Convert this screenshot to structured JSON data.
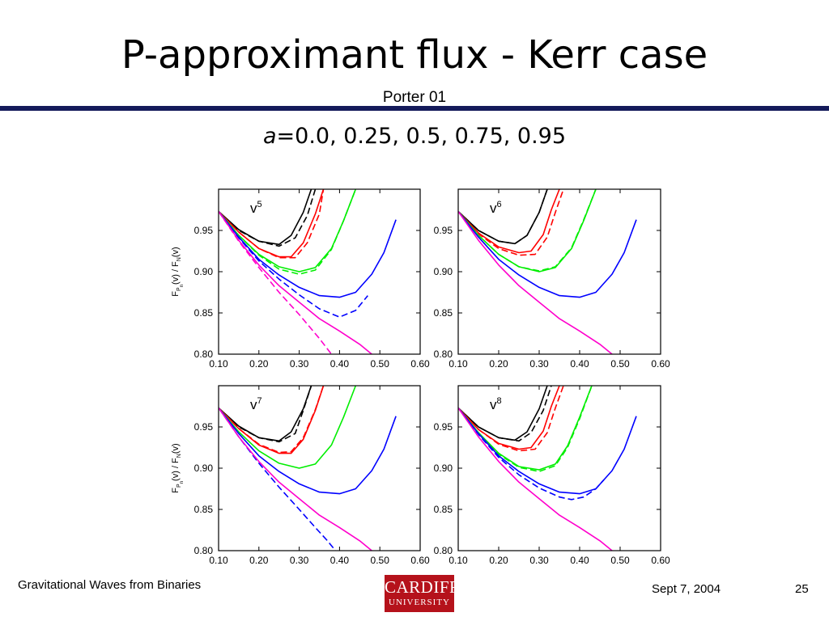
{
  "slide": {
    "title": "P-approximant flux - Kerr case",
    "subtitle": "Porter 01",
    "params_symbol": "a",
    "params_values": "=0.0, 0.25, 0.5, 0.75, 0.95",
    "footer_left": "Gravitational Waves from Binaries",
    "footer_date": "Sept 7, 2004",
    "page_number": "25",
    "logo_top": "CARDIFF",
    "logo_bottom": "UNIVERSITY"
  },
  "colors": {
    "rule": "#141a5a",
    "logo": "#b5121b",
    "a0.0": "#ff00cc",
    "a0.25": "#0000ff",
    "a0.5": "#00ee00",
    "a0.75": "#ff0000",
    "a0.95": "#000000"
  },
  "chart_data": [
    {
      "type": "line",
      "panel_label": "v5",
      "ylabel": "FPn(v) / FN(v)",
      "xlim": [
        0.1,
        0.6
      ],
      "ylim": [
        0.8,
        1.0
      ],
      "xticks": [
        "0.10",
        "0.20",
        "0.30",
        "0.40",
        "0.50",
        "0.60"
      ],
      "yticks": [
        "0.80",
        "0.85",
        "0.90",
        "0.95"
      ],
      "series": [
        {
          "a": "0.95",
          "style": "solid",
          "x": [
            0.1,
            0.15,
            0.2,
            0.25,
            0.28,
            0.31,
            0.33
          ],
          "y": [
            0.973,
            0.951,
            0.937,
            0.933,
            0.944,
            0.972,
            1.0
          ]
        },
        {
          "a": "0.95",
          "style": "dashed",
          "x": [
            0.1,
            0.15,
            0.2,
            0.25,
            0.29,
            0.32,
            0.34
          ],
          "y": [
            0.973,
            0.95,
            0.937,
            0.931,
            0.941,
            0.968,
            1.0
          ]
        },
        {
          "a": "0.75",
          "style": "solid",
          "x": [
            0.1,
            0.15,
            0.2,
            0.25,
            0.28,
            0.31,
            0.34,
            0.36
          ],
          "y": [
            0.973,
            0.948,
            0.928,
            0.918,
            0.918,
            0.935,
            0.97,
            1.0
          ]
        },
        {
          "a": "0.75",
          "style": "dashed",
          "x": [
            0.1,
            0.15,
            0.2,
            0.25,
            0.29,
            0.32,
            0.35,
            0.36
          ],
          "y": [
            0.973,
            0.948,
            0.928,
            0.917,
            0.917,
            0.935,
            0.97,
            1.0
          ]
        },
        {
          "a": "0.5",
          "style": "solid",
          "x": [
            0.1,
            0.15,
            0.2,
            0.25,
            0.3,
            0.34,
            0.38,
            0.41,
            0.44
          ],
          "y": [
            0.973,
            0.944,
            0.921,
            0.906,
            0.9,
            0.905,
            0.928,
            0.962,
            1.0
          ]
        },
        {
          "a": "0.5",
          "style": "dashed",
          "x": [
            0.1,
            0.15,
            0.2,
            0.25,
            0.3,
            0.34,
            0.38,
            0.41,
            0.44
          ],
          "y": [
            0.973,
            0.944,
            0.92,
            0.903,
            0.897,
            0.902,
            0.927,
            0.962,
            1.0
          ]
        },
        {
          "a": "0.25",
          "style": "solid",
          "x": [
            0.1,
            0.15,
            0.2,
            0.25,
            0.3,
            0.35,
            0.4,
            0.44,
            0.48,
            0.51,
            0.54
          ],
          "y": [
            0.973,
            0.942,
            0.915,
            0.896,
            0.881,
            0.871,
            0.869,
            0.875,
            0.897,
            0.923,
            0.963
          ]
        },
        {
          "a": "0.25",
          "style": "dashed",
          "x": [
            0.1,
            0.15,
            0.2,
            0.25,
            0.3,
            0.35,
            0.4,
            0.44,
            0.47
          ],
          "y": [
            0.973,
            0.941,
            0.913,
            0.891,
            0.872,
            0.855,
            0.845,
            0.853,
            0.871
          ]
        },
        {
          "a": "0.0",
          "style": "solid",
          "x": [
            0.1,
            0.15,
            0.2,
            0.25,
            0.3,
            0.35,
            0.4,
            0.45,
            0.48
          ],
          "y": [
            0.973,
            0.938,
            0.908,
            0.883,
            0.863,
            0.843,
            0.828,
            0.812,
            0.8
          ]
        },
        {
          "a": "0.0",
          "style": "dashed",
          "x": [
            0.1,
            0.15,
            0.2,
            0.25,
            0.3,
            0.35,
            0.38
          ],
          "y": [
            0.973,
            0.937,
            0.905,
            0.875,
            0.848,
            0.819,
            0.8
          ]
        }
      ]
    },
    {
      "type": "line",
      "panel_label": "v6",
      "ylabel": "",
      "xlim": [
        0.1,
        0.6
      ],
      "ylim": [
        0.8,
        1.0
      ],
      "xticks": [
        "0.10",
        "0.20",
        "0.30",
        "0.40",
        "0.50",
        "0.60"
      ],
      "yticks": [
        "0.80",
        "0.85",
        "0.90",
        "0.95"
      ],
      "series": [
        {
          "a": "0.95",
          "style": "solid",
          "x": [
            0.1,
            0.15,
            0.2,
            0.24,
            0.27,
            0.3,
            0.32
          ],
          "y": [
            0.973,
            0.95,
            0.937,
            0.934,
            0.944,
            0.972,
            1.0
          ]
        },
        {
          "a": "0.95",
          "style": "dashed",
          "x": [
            0.1,
            0.15,
            0.2,
            0.24,
            0.27,
            0.3,
            0.32
          ],
          "y": [
            0.973,
            0.95,
            0.937,
            0.934,
            0.944,
            0.972,
            1.0
          ]
        },
        {
          "a": "0.75",
          "style": "solid",
          "x": [
            0.1,
            0.15,
            0.2,
            0.25,
            0.28,
            0.31,
            0.33,
            0.35
          ],
          "y": [
            0.973,
            0.947,
            0.93,
            0.923,
            0.925,
            0.945,
            0.975,
            1.0
          ]
        },
        {
          "a": "0.75",
          "style": "dashed",
          "x": [
            0.1,
            0.15,
            0.2,
            0.25,
            0.29,
            0.32,
            0.34,
            0.36
          ],
          "y": [
            0.973,
            0.946,
            0.928,
            0.92,
            0.921,
            0.942,
            0.972,
            1.0
          ]
        },
        {
          "a": "0.5",
          "style": "solid",
          "x": [
            0.1,
            0.15,
            0.2,
            0.25,
            0.3,
            0.34,
            0.38,
            0.41,
            0.44
          ],
          "y": [
            0.973,
            0.944,
            0.921,
            0.906,
            0.9,
            0.905,
            0.928,
            0.962,
            1.0
          ]
        },
        {
          "a": "0.5",
          "style": "dashed",
          "x": [
            0.1,
            0.15,
            0.2,
            0.25,
            0.3,
            0.34,
            0.38,
            0.41,
            0.44
          ],
          "y": [
            0.973,
            0.944,
            0.921,
            0.906,
            0.901,
            0.906,
            0.929,
            0.963,
            1.0
          ]
        },
        {
          "a": "0.25",
          "style": "solid",
          "x": [
            0.1,
            0.15,
            0.2,
            0.25,
            0.3,
            0.35,
            0.4,
            0.44,
            0.48,
            0.51,
            0.54
          ],
          "y": [
            0.973,
            0.942,
            0.915,
            0.896,
            0.881,
            0.871,
            0.869,
            0.875,
            0.897,
            0.923,
            0.963
          ]
        },
        {
          "a": "0.0",
          "style": "solid",
          "x": [
            0.1,
            0.15,
            0.2,
            0.25,
            0.3,
            0.35,
            0.4,
            0.45,
            0.48
          ],
          "y": [
            0.973,
            0.938,
            0.908,
            0.883,
            0.863,
            0.843,
            0.828,
            0.812,
            0.8
          ]
        }
      ]
    },
    {
      "type": "line",
      "panel_label": "v7",
      "ylabel": "FPn(v) / FN(v)",
      "xlim": [
        0.1,
        0.6
      ],
      "ylim": [
        0.8,
        1.0
      ],
      "xticks": [
        "0.10",
        "0.20",
        "0.30",
        "0.40",
        "0.50",
        "0.60"
      ],
      "yticks": [
        "0.80",
        "0.85",
        "0.90",
        "0.95"
      ],
      "series": [
        {
          "a": "0.95",
          "style": "solid",
          "x": [
            0.1,
            0.15,
            0.2,
            0.25,
            0.28,
            0.31,
            0.33
          ],
          "y": [
            0.973,
            0.951,
            0.937,
            0.933,
            0.944,
            0.972,
            1.0
          ]
        },
        {
          "a": "0.95",
          "style": "dashed",
          "x": [
            0.1,
            0.15,
            0.2,
            0.25,
            0.29,
            0.31,
            0.33
          ],
          "y": [
            0.973,
            0.95,
            0.937,
            0.932,
            0.942,
            0.97,
            1.0
          ]
        },
        {
          "a": "0.75",
          "style": "solid",
          "x": [
            0.1,
            0.15,
            0.2,
            0.25,
            0.28,
            0.31,
            0.34,
            0.36
          ],
          "y": [
            0.973,
            0.948,
            0.928,
            0.918,
            0.918,
            0.935,
            0.97,
            1.0
          ]
        },
        {
          "a": "0.75",
          "style": "dashed",
          "x": [
            0.1,
            0.15,
            0.2,
            0.25,
            0.28,
            0.31,
            0.34,
            0.36
          ],
          "y": [
            0.973,
            0.948,
            0.929,
            0.919,
            0.92,
            0.937,
            0.971,
            1.0
          ]
        },
        {
          "a": "0.5",
          "style": "solid",
          "x": [
            0.1,
            0.15,
            0.2,
            0.25,
            0.3,
            0.34,
            0.38,
            0.41,
            0.44
          ],
          "y": [
            0.973,
            0.944,
            0.921,
            0.906,
            0.9,
            0.905,
            0.928,
            0.962,
            1.0
          ]
        },
        {
          "a": "0.25",
          "style": "solid",
          "x": [
            0.1,
            0.15,
            0.2,
            0.25,
            0.3,
            0.35,
            0.4,
            0.44,
            0.48,
            0.51,
            0.54
          ],
          "y": [
            0.973,
            0.942,
            0.915,
            0.896,
            0.881,
            0.871,
            0.869,
            0.875,
            0.897,
            0.923,
            0.963
          ]
        },
        {
          "a": "0.25",
          "style": "dashed",
          "x": [
            0.1,
            0.15,
            0.2,
            0.25,
            0.3,
            0.34,
            0.37,
            0.39
          ],
          "y": [
            0.973,
            0.938,
            0.906,
            0.877,
            0.85,
            0.828,
            0.812,
            0.8
          ]
        },
        {
          "a": "0.0",
          "style": "solid",
          "x": [
            0.1,
            0.15,
            0.2,
            0.25,
            0.3,
            0.35,
            0.4,
            0.45,
            0.48
          ],
          "y": [
            0.973,
            0.938,
            0.908,
            0.883,
            0.863,
            0.843,
            0.828,
            0.812,
            0.8
          ]
        }
      ]
    },
    {
      "type": "line",
      "panel_label": "v8",
      "ylabel": "",
      "xlim": [
        0.1,
        0.6
      ],
      "ylim": [
        0.8,
        1.0
      ],
      "xticks": [
        "0.10",
        "0.20",
        "0.30",
        "0.40",
        "0.50",
        "0.60"
      ],
      "yticks": [
        "0.80",
        "0.85",
        "0.90",
        "0.95"
      ],
      "series": [
        {
          "a": "0.95",
          "style": "solid",
          "x": [
            0.1,
            0.15,
            0.2,
            0.24,
            0.27,
            0.3,
            0.32
          ],
          "y": [
            0.973,
            0.95,
            0.937,
            0.934,
            0.944,
            0.972,
            1.0
          ]
        },
        {
          "a": "0.95",
          "style": "dashed",
          "x": [
            0.1,
            0.15,
            0.2,
            0.25,
            0.28,
            0.31,
            0.33
          ],
          "y": [
            0.973,
            0.95,
            0.937,
            0.933,
            0.943,
            0.97,
            1.0
          ]
        },
        {
          "a": "0.75",
          "style": "solid",
          "x": [
            0.1,
            0.15,
            0.2,
            0.25,
            0.28,
            0.31,
            0.33,
            0.35
          ],
          "y": [
            0.973,
            0.947,
            0.93,
            0.923,
            0.925,
            0.945,
            0.975,
            1.0
          ]
        },
        {
          "a": "0.75",
          "style": "dashed",
          "x": [
            0.1,
            0.15,
            0.2,
            0.25,
            0.29,
            0.32,
            0.34,
            0.36
          ],
          "y": [
            0.973,
            0.947,
            0.929,
            0.921,
            0.923,
            0.943,
            0.973,
            1.0
          ]
        },
        {
          "a": "0.5",
          "style": "solid",
          "x": [
            0.1,
            0.15,
            0.2,
            0.25,
            0.3,
            0.34,
            0.37,
            0.4,
            0.43
          ],
          "y": [
            0.973,
            0.943,
            0.918,
            0.902,
            0.898,
            0.905,
            0.927,
            0.962,
            1.0
          ]
        },
        {
          "a": "0.5",
          "style": "dashed",
          "x": [
            0.1,
            0.15,
            0.2,
            0.25,
            0.3,
            0.34,
            0.37,
            0.4,
            0.43
          ],
          "y": [
            0.973,
            0.943,
            0.917,
            0.901,
            0.896,
            0.903,
            0.925,
            0.96,
            1.0
          ]
        },
        {
          "a": "0.25",
          "style": "solid",
          "x": [
            0.1,
            0.15,
            0.2,
            0.25,
            0.3,
            0.35,
            0.4,
            0.44,
            0.48,
            0.51,
            0.54
          ],
          "y": [
            0.973,
            0.942,
            0.915,
            0.896,
            0.881,
            0.871,
            0.869,
            0.875,
            0.897,
            0.923,
            0.963
          ]
        },
        {
          "a": "0.25",
          "style": "dashed",
          "x": [
            0.1,
            0.15,
            0.2,
            0.25,
            0.3,
            0.35,
            0.38,
            0.41,
            0.44,
            0.46
          ],
          "y": [
            0.973,
            0.941,
            0.913,
            0.892,
            0.876,
            0.865,
            0.862,
            0.865,
            0.875,
            0.886
          ]
        },
        {
          "a": "0.0",
          "style": "solid",
          "x": [
            0.1,
            0.15,
            0.2,
            0.25,
            0.3,
            0.35,
            0.4,
            0.45,
            0.48
          ],
          "y": [
            0.973,
            0.938,
            0.908,
            0.883,
            0.863,
            0.843,
            0.828,
            0.812,
            0.8
          ]
        }
      ]
    }
  ]
}
